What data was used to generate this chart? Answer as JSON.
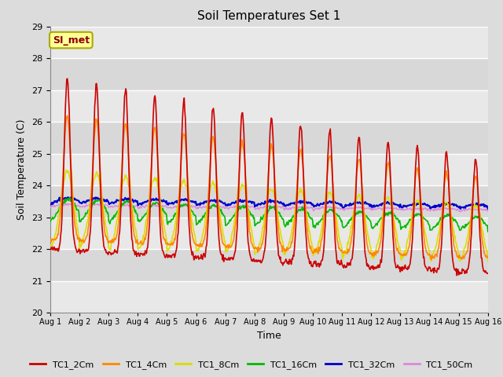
{
  "title": "Soil Temperatures Set 1",
  "xlabel": "Time",
  "ylabel": "Soil Temperature (C)",
  "ylim": [
    20.0,
    29.0
  ],
  "yticks": [
    20.0,
    21.0,
    22.0,
    23.0,
    24.0,
    25.0,
    26.0,
    27.0,
    28.0,
    29.0
  ],
  "bg_color": "#dcdcdc",
  "legend_label": "SI_met",
  "series_colors": {
    "TC1_2Cm": "#cc0000",
    "TC1_4Cm": "#ff8800",
    "TC1_8Cm": "#dddd00",
    "TC1_16Cm": "#00bb00",
    "TC1_32Cm": "#0000cc",
    "TC1_50Cm": "#dd88dd"
  },
  "n_points": 720,
  "days": 15,
  "start_day": 1
}
